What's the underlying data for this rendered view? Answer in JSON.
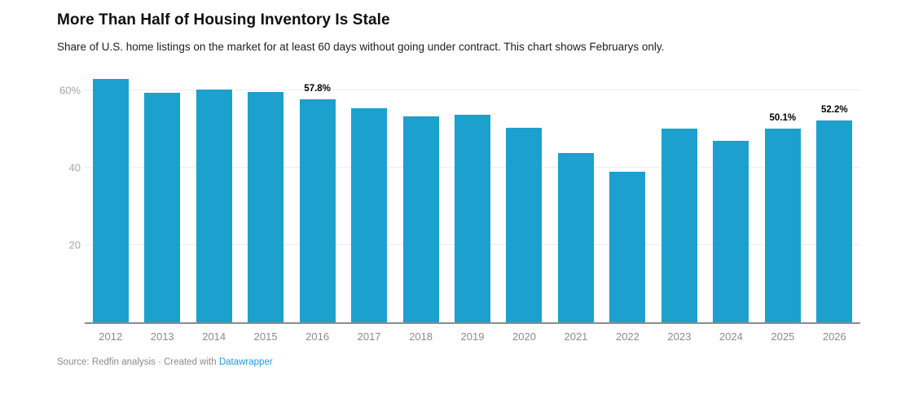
{
  "header": {
    "title": "More Than Half of Housing Inventory Is Stale",
    "subtitle": "Share of U.S. home listings on the market for at least 60 days without going under contract. This chart shows Februarys only."
  },
  "chart_data": {
    "type": "bar",
    "title": "More Than Half of Housing Inventory Is Stale",
    "subtitle": "Share of U.S. home listings on the market for at least 60 days without going under contract. This chart shows Februarys only.",
    "categories": [
      "2012",
      "2013",
      "2014",
      "2015",
      "2016",
      "2017",
      "2018",
      "2019",
      "2020",
      "2021",
      "2022",
      "2023",
      "2024",
      "2025",
      "2026"
    ],
    "values": [
      63.1,
      59.5,
      60.3,
      59.7,
      57.8,
      55.5,
      53.3,
      53.8,
      50.4,
      43.8,
      39.1,
      50.2,
      47.0,
      50.1,
      52.2
    ],
    "bar_labels": [
      "",
      "",
      "",
      "",
      "57.8%",
      "",
      "",
      "",
      "",
      "",
      "",
      "",
      "",
      "50.1%",
      "52.2%"
    ],
    "yticks": [
      {
        "value": 20,
        "label": "20"
      },
      {
        "value": 40,
        "label": "40"
      },
      {
        "value": 60,
        "label": "60%"
      }
    ],
    "ylim": [
      0,
      64.5
    ],
    "xlabel": "",
    "ylabel": "",
    "grid": "horizontal",
    "legend": "none",
    "unit": "%"
  },
  "colors": {
    "bar": "#1ca1ce",
    "gridline": "#ececec",
    "baseline": "#8c8c8c",
    "y_tick_text": "#a6a6a6",
    "x_tick_text": "#8b8b8b",
    "value_label_text": "#000000",
    "footer_text": "#8b8b8b",
    "link": "#1d9be0"
  },
  "footer": {
    "source_text": "Source: Redfin analysis",
    "separator": "·",
    "created_text": "Created with",
    "link_label": "Datawrapper"
  }
}
